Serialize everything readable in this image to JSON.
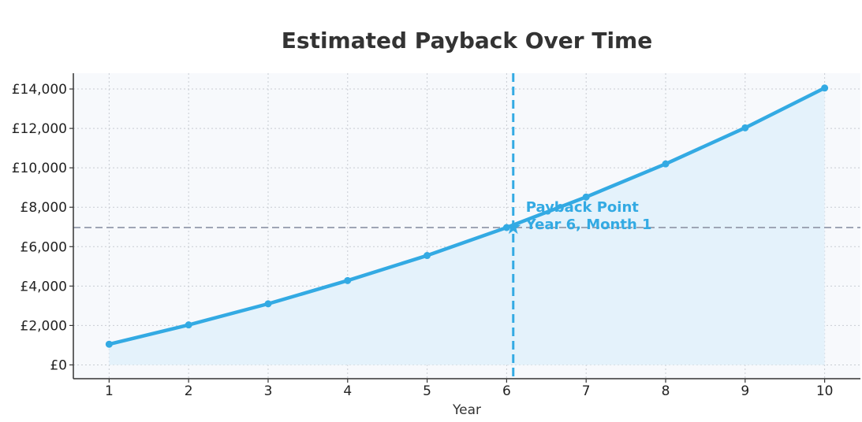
{
  "chart_data": {
    "type": "line",
    "title": "Estimated Payback Over Time",
    "xlabel": "Year",
    "ylabel": "",
    "x": [
      1,
      2,
      3,
      4,
      5,
      6,
      7,
      8,
      9,
      10
    ],
    "series": [
      {
        "values": [
          1050,
          2030,
          3100,
          4280,
          5550,
          6970,
          8520,
          10200,
          12030,
          14050
        ],
        "color": "#33AAE3",
        "fill": "area"
      }
    ],
    "xlim": [
      0.55,
      10.45
    ],
    "ylim": [
      -700,
      14800
    ],
    "xticks": [
      1,
      2,
      3,
      4,
      5,
      6,
      7,
      8,
      9,
      10
    ],
    "xtick_labels": [
      "1",
      "2",
      "3",
      "4",
      "5",
      "6",
      "7",
      "8",
      "9",
      "10"
    ],
    "yticks": [
      0,
      2000,
      4000,
      6000,
      8000,
      10000,
      12000,
      14000
    ],
    "ytick_labels": [
      "£0",
      "£2,000",
      "£4,000",
      "£6,000",
      "£8,000",
      "£10,000",
      "£12,000",
      "£14,000"
    ],
    "grid": true,
    "payback": {
      "year": 6.083,
      "value": 6970,
      "label_line1": "Payback Point",
      "label_line2": "Year 6, Month 1"
    },
    "colors": {
      "line": "#33AAE3",
      "fill": "#E4F2FB",
      "plot_bg": "#F7F9FC",
      "grid": "#C8CCD2",
      "reference_line": "#9EA5B5",
      "annotation": "#33AAE3"
    }
  }
}
